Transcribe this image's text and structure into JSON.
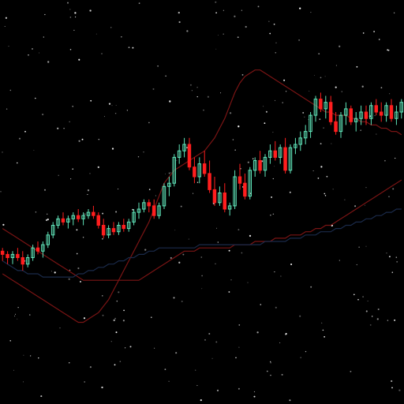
{
  "colors": {
    "background": "#000000",
    "bull": "#5fe3b8",
    "bear": "#ff1e1e",
    "overlay_red": "#7a1414",
    "overlay_blue": "#1a2a4a",
    "stars": "#ffffff"
  },
  "chart_data": {
    "type": "candlestick",
    "grid": false,
    "legend": "none",
    "x": [
      0,
      1,
      2,
      3,
      4,
      5,
      6,
      7,
      8,
      9,
      10,
      11,
      12,
      13,
      14,
      15,
      16,
      17,
      18,
      19,
      20,
      21,
      22,
      23,
      24,
      25,
      26,
      27,
      28,
      29,
      30,
      31,
      32,
      33,
      34,
      35,
      36,
      37,
      38,
      39,
      40,
      41,
      42,
      43,
      44,
      45,
      46,
      47,
      48,
      49,
      50,
      51,
      52,
      53,
      54,
      55,
      56,
      57,
      58,
      59,
      60,
      61,
      62,
      63,
      64,
      65,
      66,
      67,
      68,
      69,
      70,
      71,
      72,
      73,
      74,
      75,
      76,
      77,
      78,
      79
    ],
    "ylim": [
      0,
      100
    ],
    "series": [
      {
        "kind": "ohlc",
        "candles": [
          [
            37,
            38,
            34,
            36
          ],
          [
            36,
            37,
            33,
            35
          ],
          [
            35,
            37,
            33,
            36
          ],
          [
            36,
            38,
            34,
            35
          ],
          [
            35,
            37,
            31,
            33
          ],
          [
            33,
            36,
            32,
            35
          ],
          [
            35,
            39,
            34,
            38
          ],
          [
            38,
            40,
            36,
            37
          ],
          [
            37,
            40,
            35,
            39
          ],
          [
            39,
            43,
            38,
            42
          ],
          [
            42,
            46,
            41,
            45
          ],
          [
            45,
            48,
            44,
            47
          ],
          [
            47,
            49,
            45,
            46
          ],
          [
            46,
            48,
            44,
            47
          ],
          [
            47,
            49,
            45,
            48
          ],
          [
            48,
            50,
            46,
            47
          ],
          [
            47,
            49,
            45,
            48
          ],
          [
            48,
            50,
            47,
            49
          ],
          [
            49,
            51,
            47,
            48
          ],
          [
            48,
            49,
            44,
            45
          ],
          [
            45,
            47,
            41,
            42
          ],
          [
            42,
            45,
            41,
            44
          ],
          [
            44,
            46,
            42,
            43
          ],
          [
            43,
            46,
            42,
            45
          ],
          [
            45,
            47,
            43,
            44
          ],
          [
            44,
            47,
            43,
            46
          ],
          [
            46,
            50,
            45,
            49
          ],
          [
            49,
            52,
            47,
            50
          ],
          [
            50,
            53,
            49,
            52
          ],
          [
            52,
            53,
            49,
            51
          ],
          [
            51,
            53,
            47,
            48
          ],
          [
            48,
            52,
            47,
            51
          ],
          [
            51,
            58,
            50,
            57
          ],
          [
            57,
            60,
            54,
            58
          ],
          [
            58,
            67,
            57,
            66
          ],
          [
            66,
            70,
            64,
            68
          ],
          [
            68,
            72,
            66,
            70
          ],
          [
            70,
            72,
            62,
            63
          ],
          [
            63,
            66,
            58,
            60
          ],
          [
            60,
            66,
            58,
            64
          ],
          [
            64,
            68,
            60,
            61
          ],
          [
            61,
            65,
            55,
            56
          ],
          [
            56,
            60,
            51,
            52
          ],
          [
            52,
            57,
            51,
            55
          ],
          [
            55,
            58,
            49,
            50
          ],
          [
            50,
            52,
            48,
            51
          ],
          [
            51,
            62,
            50,
            60
          ],
          [
            60,
            64,
            56,
            58
          ],
          [
            58,
            61,
            53,
            54
          ],
          [
            54,
            63,
            53,
            62
          ],
          [
            62,
            66,
            60,
            65
          ],
          [
            65,
            68,
            61,
            62
          ],
          [
            62,
            67,
            60,
            66
          ],
          [
            66,
            70,
            64,
            68
          ],
          [
            68,
            71,
            65,
            66
          ],
          [
            66,
            70,
            64,
            69
          ],
          [
            69,
            72,
            61,
            62
          ],
          [
            62,
            70,
            61,
            69
          ],
          [
            69,
            72,
            67,
            70
          ],
          [
            70,
            74,
            68,
            72
          ],
          [
            72,
            76,
            70,
            74
          ],
          [
            74,
            80,
            72,
            79
          ],
          [
            79,
            85,
            77,
            84
          ],
          [
            84,
            86,
            80,
            81
          ],
          [
            81,
            85,
            78,
            83
          ],
          [
            83,
            85,
            76,
            77
          ],
          [
            77,
            80,
            73,
            74
          ],
          [
            74,
            80,
            72,
            79
          ],
          [
            79,
            83,
            76,
            81
          ],
          [
            81,
            82,
            76,
            77
          ],
          [
            77,
            80,
            74,
            78
          ],
          [
            78,
            82,
            76,
            80
          ],
          [
            80,
            82,
            76,
            78
          ],
          [
            78,
            83,
            76,
            82
          ],
          [
            82,
            84,
            79,
            80
          ],
          [
            80,
            83,
            77,
            79
          ],
          [
            79,
            83,
            77,
            82
          ],
          [
            82,
            84,
            77,
            78
          ],
          [
            78,
            82,
            76,
            80
          ],
          [
            80,
            84,
            78,
            83
          ]
        ]
      },
      {
        "kind": "overlay",
        "color_key": "overlay_red",
        "values": [
          30,
          29,
          28,
          27,
          26,
          25,
          24,
          23,
          22,
          21,
          20,
          19,
          18,
          17,
          16,
          15,
          15,
          16,
          17,
          18,
          20,
          22,
          25,
          28,
          31,
          34,
          37,
          40,
          43,
          46,
          50,
          54,
          58,
          60,
          62,
          63,
          64,
          65,
          66,
          67,
          68,
          70,
          72,
          75,
          78,
          82,
          86,
          89,
          91,
          92,
          93,
          93,
          92,
          91,
          90,
          89,
          88,
          87,
          86,
          85,
          84,
          83,
          82,
          81,
          80,
          80,
          79,
          79,
          79,
          78,
          78,
          77,
          77,
          76,
          76,
          75,
          75,
          74,
          74,
          73
        ]
      },
      {
        "kind": "overlay",
        "color_key": "overlay_red",
        "values": [
          44,
          43,
          42,
          41,
          40,
          39,
          38,
          37,
          36,
          35,
          34,
          33,
          32,
          31,
          30,
          29,
          28,
          28,
          28,
          28,
          28,
          28,
          28,
          28,
          28,
          28,
          28,
          28,
          29,
          30,
          31,
          32,
          33,
          34,
          35,
          36,
          37,
          37,
          37,
          38,
          38,
          38,
          38,
          38,
          38,
          38,
          39,
          39,
          39,
          39,
          40,
          40,
          40,
          40,
          41,
          41,
          41,
          42,
          42,
          42,
          43,
          43,
          44,
          44,
          45,
          45,
          46,
          47,
          48,
          49,
          50,
          51,
          52,
          53,
          54,
          55,
          56,
          57,
          58,
          59
        ]
      },
      {
        "kind": "overlay",
        "color_key": "overlay_blue",
        "values": [
          34,
          33,
          32,
          31,
          31,
          30,
          30,
          30,
          29,
          29,
          29,
          29,
          29,
          29,
          29,
          30,
          30,
          31,
          31,
          32,
          32,
          33,
          33,
          34,
          34,
          35,
          35,
          36,
          36,
          37,
          37,
          38,
          38,
          38,
          38,
          38,
          38,
          38,
          38,
          39,
          39,
          39,
          39,
          39,
          39,
          39,
          39,
          39,
          39,
          39,
          39,
          39,
          40,
          40,
          40,
          40,
          40,
          41,
          41,
          41,
          42,
          42,
          42,
          43,
          43,
          43,
          44,
          44,
          45,
          45,
          46,
          46,
          47,
          47,
          48,
          48,
          49,
          49,
          50,
          50
        ]
      }
    ]
  }
}
